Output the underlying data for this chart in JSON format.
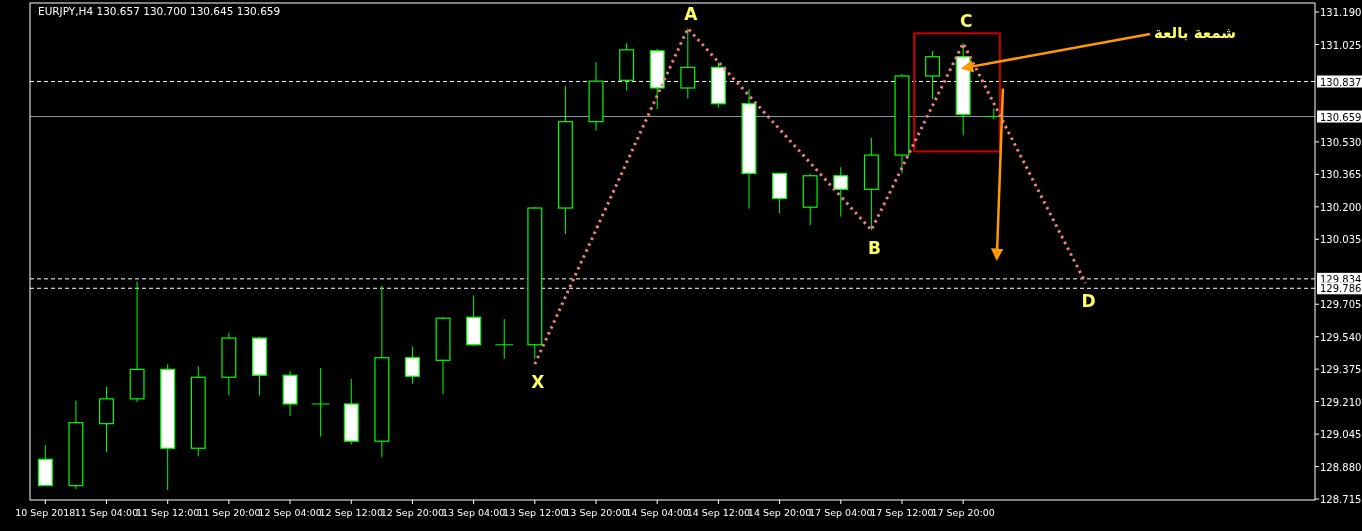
{
  "chart_data": {
    "type": "candlestick",
    "title": "EURJPY,H4  130.657 130.700 130.645 130.659",
    "color": "#00ff00",
    "categories": [
      "10 Sep 2018",
      null,
      "11 Sep 04:00",
      null,
      "11 Sep 12:00",
      null,
      "11 Sep 20:00",
      null,
      "12 Sep 04:00",
      null,
      "12 Sep 12:00",
      null,
      "12 Sep 20:00",
      null,
      "13 Sep 04:00",
      null,
      "13 Sep 12:00",
      null,
      "13 Sep 20:00",
      null,
      "14 Sep 04:00",
      null,
      "14 Sep 12:00",
      null,
      "14 Sep 20:00",
      null,
      "17 Sep 04:00",
      null,
      "17 Sep 12:00",
      null,
      "17 Sep 20:00",
      null,
      null,
      null,
      null,
      null,
      null,
      null,
      null,
      null,
      null,
      null
    ],
    "ohlc": [
      [
        128.917,
        128.99,
        128.783,
        128.783
      ],
      [
        128.783,
        129.215,
        128.766,
        129.103
      ],
      [
        129.098,
        129.286,
        128.953,
        129.224
      ],
      [
        129.224,
        129.82,
        129.207,
        129.374
      ],
      [
        129.374,
        129.4,
        128.761,
        128.973
      ],
      [
        128.973,
        129.39,
        128.932,
        129.334
      ],
      [
        129.334,
        129.56,
        129.242,
        129.533
      ],
      [
        129.533,
        129.54,
        129.242,
        129.344
      ],
      [
        129.344,
        129.366,
        129.137,
        129.198
      ],
      [
        129.198,
        129.381,
        129.032,
        129.198
      ],
      [
        129.198,
        129.325,
        128.993,
        129.009
      ],
      [
        129.009,
        129.799,
        128.927,
        129.433
      ],
      [
        129.433,
        129.489,
        129.301,
        129.339
      ],
      [
        129.42,
        129.639,
        129.247,
        129.634
      ],
      [
        129.639,
        129.75,
        129.493,
        129.499
      ],
      [
        129.499,
        129.63,
        129.427,
        129.499
      ],
      [
        129.499,
        130.199,
        129.427,
        130.194
      ],
      [
        130.194,
        130.814,
        130.062,
        130.633
      ],
      [
        130.633,
        130.936,
        130.587,
        130.839
      ],
      [
        130.843,
        131.031,
        130.792,
        130.998
      ],
      [
        130.993,
        131.002,
        130.697,
        130.804
      ],
      [
        130.804,
        131.107,
        130.751,
        130.909
      ],
      [
        130.909,
        130.934,
        130.704,
        130.724
      ],
      [
        130.724,
        130.797,
        130.191,
        130.37
      ],
      [
        130.37,
        130.37,
        130.167,
        130.243
      ],
      [
        130.198,
        130.367,
        130.106,
        130.358
      ],
      [
        130.358,
        130.401,
        130.15,
        130.289
      ],
      [
        130.289,
        130.551,
        130.082,
        130.463
      ],
      [
        130.463,
        130.875,
        130.37,
        130.865
      ],
      [
        130.865,
        130.992,
        130.748,
        130.963
      ],
      [
        130.963,
        131.031,
        130.563,
        130.67
      ],
      [
        130.657,
        130.7,
        130.645,
        130.659
      ],
      null,
      null,
      null,
      null,
      null,
      null,
      null,
      null,
      null,
      null
    ],
    "series": [
      {
        "type": "line",
        "color": "#f08080",
        "line_style": "dotted",
        "values": [
          null,
          null,
          null,
          null,
          null,
          null,
          null,
          null,
          null,
          null,
          null,
          null,
          null,
          null,
          null,
          null,
          129.401,
          null,
          null,
          null,
          null,
          131.107,
          null,
          null,
          null,
          null,
          null,
          130.082,
          null,
          null,
          131.031,
          null,
          null,
          null,
          129.813,
          null,
          null,
          null,
          null,
          null,
          null,
          null
        ],
        "value_labels": [
          null,
          null,
          null,
          null,
          null,
          null,
          null,
          null,
          null,
          null,
          null,
          null,
          null,
          null,
          null,
          null,
          "X",
          null,
          null,
          null,
          null,
          "A",
          null,
          null,
          null,
          null,
          null,
          "B",
          null,
          null,
          "C",
          null,
          null,
          null,
          "D",
          null,
          null,
          null,
          null,
          null,
          null,
          null
        ]
      }
    ],
    "ylim": [
      128.71,
      131.236
    ],
    "yticks": [
      {
        "value": 131.19,
        "label": "131.190"
      },
      {
        "value": 131.025,
        "label": "131.025"
      },
      {
        "value": 130.53,
        "label": "130.530"
      },
      {
        "value": 130.365,
        "label": "130.365"
      },
      {
        "value": 130.2,
        "label": "130.200"
      },
      {
        "value": 130.035,
        "label": "130.035"
      },
      {
        "value": 129.705,
        "label": "129.705"
      },
      {
        "value": 129.54,
        "label": "129.540"
      },
      {
        "value": 129.375,
        "label": "129.375"
      },
      {
        "value": 129.21,
        "label": "129.210"
      },
      {
        "value": 129.045,
        "label": "129.045"
      },
      {
        "value": 128.88,
        "label": "128.880"
      },
      {
        "value": 128.715,
        "label": "128.715"
      }
    ],
    "ref_lines": [
      {
        "axis": "y",
        "value": 130.837,
        "label": "130.837",
        "color": "#ffffff",
        "line_style": "dashed"
      },
      {
        "axis": "y",
        "value": 130.659,
        "label": "130.659",
        "color": "#8899aa",
        "line_style": "solid"
      },
      {
        "axis": "y",
        "value": 129.834,
        "label": "129.834",
        "color": "#ffffff",
        "line_style": "dashed"
      },
      {
        "axis": "y",
        "value": 129.786,
        "label": "129.786",
        "color": "#ffffff",
        "line_style": "dashed"
      }
    ],
    "annotations": [
      {
        "text": "شمعة بالعة",
        "x": "17 Sep 20:00",
        "y": 130.905
      }
    ]
  }
}
